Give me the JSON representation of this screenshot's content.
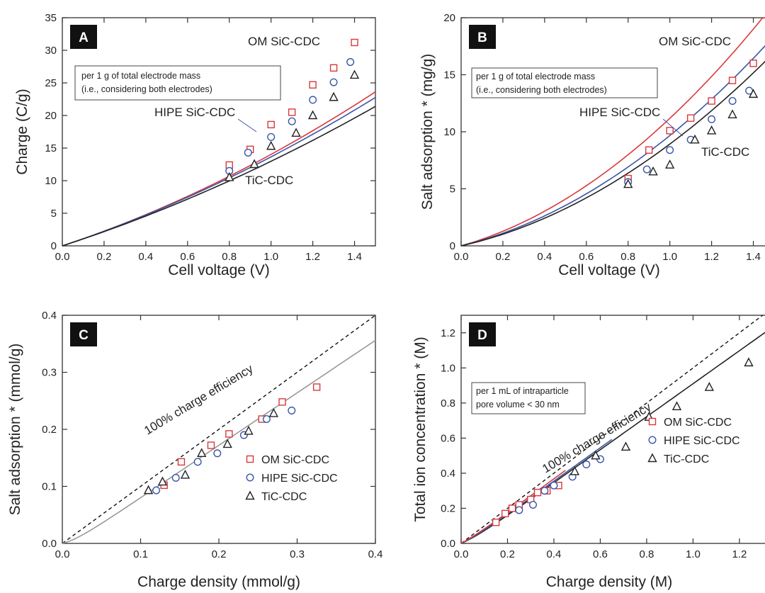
{
  "colors": {
    "om": "#d9383a",
    "hipe": "#3a55a8",
    "tic": "#222222",
    "gray": "#999999"
  },
  "chart_data": [
    {
      "panel": "A",
      "type": "scatter",
      "xlabel": "Cell voltage (V)",
      "ylabel": "Charge (C/g)",
      "xlim": [
        0,
        1.5
      ],
      "ylim": [
        0,
        35
      ],
      "xticks": [
        "0.0",
        "0.2",
        "0.4",
        "0.6",
        "0.8",
        "1.0",
        "1.2",
        "1.4"
      ],
      "yticks": [
        "0",
        "5",
        "10",
        "15",
        "20",
        "25",
        "30",
        "35"
      ],
      "note": [
        "per 1 g of total electrode mass",
        "(i.e., considering both electrodes)"
      ],
      "series": [
        {
          "name": "OM SiC-CDC",
          "color": "om",
          "marker": "square",
          "points": [
            [
              0.8,
              12.4
            ],
            [
              0.9,
              14.8
            ],
            [
              1.0,
              18.6
            ],
            [
              1.1,
              20.5
            ],
            [
              1.2,
              24.7
            ],
            [
              1.3,
              27.3
            ],
            [
              1.4,
              31.2
            ]
          ],
          "fit": {
            "a": 10.6,
            "b": 0.72
          }
        },
        {
          "name": "HIPE SiC-CDC",
          "color": "hipe",
          "marker": "circle",
          "points": [
            [
              0.8,
              11.5
            ],
            [
              0.89,
              14.3
            ],
            [
              1.0,
              16.7
            ],
            [
              1.1,
              19.1
            ],
            [
              1.2,
              22.4
            ],
            [
              1.3,
              25.1
            ],
            [
              1.38,
              28.2
            ]
          ],
          "fit": {
            "a": 10.6,
            "b": 0.64
          }
        },
        {
          "name": "TiC-CDC",
          "color": "tic",
          "marker": "triangle",
          "points": [
            [
              0.8,
              10.5
            ],
            [
              0.92,
              12.5
            ],
            [
              1.0,
              15.3
            ],
            [
              1.12,
              17.3
            ],
            [
              1.2,
              20.0
            ],
            [
              1.3,
              22.8
            ],
            [
              1.4,
              26.2
            ]
          ],
          "fit": {
            "a": 10.4,
            "b": 0.55
          }
        }
      ]
    },
    {
      "panel": "B",
      "type": "scatter",
      "xlabel": "Cell voltage (V)",
      "ylabel": "Salt adsorption * (mg/g)",
      "xlim": [
        0,
        1.5
      ],
      "ylim": [
        0,
        20
      ],
      "xticks": [
        "0.0",
        "0.2",
        "0.4",
        "0.6",
        "0.8",
        "1.0",
        "1.2",
        "1.4"
      ],
      "yticks": [
        "0",
        "5",
        "10",
        "15",
        "20"
      ],
      "note": [
        "per 1 g of total electrode mass",
        "(i.e., considering both electrodes)"
      ],
      "series": [
        {
          "name": "OM SiC-CDC",
          "color": "om",
          "marker": "square",
          "points": [
            [
              0.8,
              5.9
            ],
            [
              0.9,
              8.4
            ],
            [
              1.0,
              10.1
            ],
            [
              1.1,
              11.2
            ],
            [
              1.2,
              12.7
            ],
            [
              1.3,
              14.5
            ],
            [
              1.4,
              16.0
            ]
          ],
          "fit": {
            "a": 5.2,
            "b": 1.15
          }
        },
        {
          "name": "HIPE SiC-CDC",
          "color": "hipe",
          "marker": "circle",
          "points": [
            [
              0.8,
              5.6
            ],
            [
              0.89,
              6.7
            ],
            [
              1.0,
              8.4
            ],
            [
              1.1,
              9.3
            ],
            [
              1.2,
              11.1
            ],
            [
              1.3,
              12.7
            ],
            [
              1.38,
              13.6
            ]
          ],
          "fit": {
            "a": 4.5,
            "b": 1.15
          }
        },
        {
          "name": "TiC-CDC",
          "color": "tic",
          "marker": "triangle",
          "points": [
            [
              0.8,
              5.4
            ],
            [
              0.92,
              6.5
            ],
            [
              1.0,
              7.1
            ],
            [
              1.12,
              9.3
            ],
            [
              1.2,
              10.1
            ],
            [
              1.3,
              11.5
            ],
            [
              1.4,
              13.3
            ]
          ],
          "fit": {
            "a": 4.15,
            "b": 1.15
          }
        }
      ]
    },
    {
      "panel": "C",
      "type": "scatter",
      "xlabel": "Charge density (mmol/g)",
      "ylabel": "Salt adsorption * (mmol/g)",
      "xlim": [
        0,
        0.4
      ],
      "ylim": [
        0,
        0.4
      ],
      "xticks": [
        "0.0",
        "0.1",
        "0.2",
        "0.3",
        "0.4"
      ],
      "yticks": [
        "0.0",
        "0.1",
        "0.2",
        "0.3",
        "0.4"
      ],
      "reference_label": "100% charge efficiency",
      "legend": "bottom-right",
      "series": [
        {
          "name": "OM SiC-CDC",
          "color": "om",
          "marker": "square",
          "points": [
            [
              0.13,
              0.102
            ],
            [
              0.152,
              0.143
            ],
            [
              0.19,
              0.172
            ],
            [
              0.213,
              0.192
            ],
            [
              0.255,
              0.218
            ],
            [
              0.281,
              0.248
            ],
            [
              0.325,
              0.274
            ]
          ]
        },
        {
          "name": "HIPE SiC-CDC",
          "color": "hipe",
          "marker": "circle",
          "points": [
            [
              0.12,
              0.093
            ],
            [
              0.145,
              0.115
            ],
            [
              0.173,
              0.143
            ],
            [
              0.198,
              0.158
            ],
            [
              0.232,
              0.19
            ],
            [
              0.261,
              0.218
            ],
            [
              0.293,
              0.233
            ]
          ]
        },
        {
          "name": "TiC-CDC",
          "color": "tic",
          "marker": "triangle",
          "points": [
            [
              0.11,
              0.093
            ],
            [
              0.128,
              0.108
            ],
            [
              0.157,
              0.12
            ],
            [
              0.178,
              0.158
            ],
            [
              0.211,
              0.174
            ],
            [
              0.238,
              0.197
            ],
            [
              0.27,
              0.228
            ]
          ]
        }
      ]
    },
    {
      "panel": "D",
      "type": "scatter",
      "xlabel": "Charge density (M)",
      "ylabel": "Total ion concentration * (M)",
      "xlim": [
        0,
        1.35
      ],
      "ylim": [
        0,
        1.3
      ],
      "xticks": [
        "0.0",
        "0.2",
        "0.4",
        "0.6",
        "0.8",
        "1.0",
        "1.2"
      ],
      "yticks": [
        "0.0",
        "0.2",
        "0.4",
        "0.6",
        "0.8",
        "1.0",
        "1.2"
      ],
      "note": [
        "per 1 mL of intraparticle",
        "pore volume < 30 nm"
      ],
      "reference_label": "100% charge efficiency",
      "legend": "bottom-right",
      "series": [
        {
          "name": "OM SiC-CDC",
          "color": "om",
          "marker": "square",
          "points": [
            [
              0.15,
              0.12
            ],
            [
              0.19,
              0.17
            ],
            [
              0.22,
              0.2
            ],
            [
              0.25,
              0.22
            ],
            [
              0.3,
              0.25
            ],
            [
              0.33,
              0.29
            ],
            [
              0.37,
              0.3
            ],
            [
              0.42,
              0.33
            ]
          ]
        },
        {
          "name": "HIPE SiC-CDC",
          "color": "hipe",
          "marker": "circle",
          "points": [
            [
              0.25,
              0.19
            ],
            [
              0.31,
              0.22
            ],
            [
              0.36,
              0.3
            ],
            [
              0.4,
              0.33
            ],
            [
              0.48,
              0.38
            ],
            [
              0.54,
              0.45
            ],
            [
              0.6,
              0.48
            ]
          ]
        },
        {
          "name": "TiC-CDC",
          "color": "tic",
          "marker": "triangle",
          "points": [
            [
              0.49,
              0.41
            ],
            [
              0.58,
              0.5
            ],
            [
              0.71,
              0.55
            ],
            [
              0.81,
              0.72
            ],
            [
              0.93,
              0.78
            ],
            [
              1.07,
              0.89
            ],
            [
              1.24,
              1.03
            ]
          ]
        }
      ]
    }
  ]
}
